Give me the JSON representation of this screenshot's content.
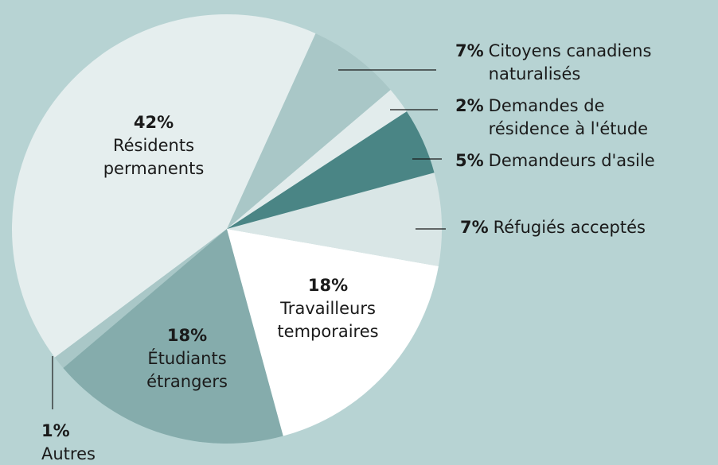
{
  "chart_data": {
    "type": "pie",
    "categories": [
      "Citoyens canadiens\nnaturalisés",
      "Demandes de\nrésidence à l'étude",
      "Demandeurs d'asile",
      "Réfugiés acceptés",
      "Travailleurs\ntemporaires",
      "Étudiants\nétrangers",
      "Autres",
      "Résidents\npermanents"
    ],
    "values": [
      7,
      2,
      5,
      7,
      18,
      18,
      1,
      42
    ],
    "value_labels": [
      "7%",
      "2%",
      "5%",
      "7%",
      "18%",
      "18%",
      "1%",
      "42%"
    ],
    "colors": [
      "#a9c7c7",
      "#e2ecec",
      "#4a8585",
      "#d9e6e6",
      "#ffffff",
      "#85acac",
      "#a9c7c7",
      "#e5eeee"
    ]
  }
}
